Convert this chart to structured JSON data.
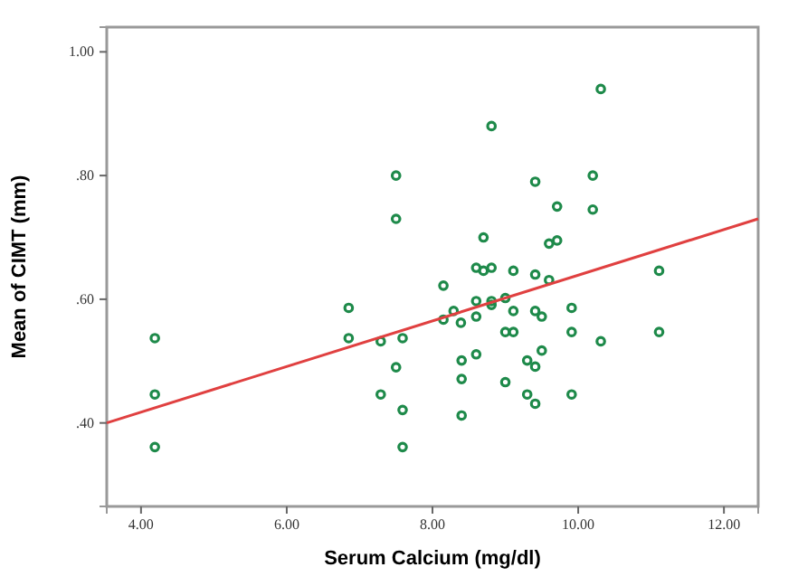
{
  "chart_data": {
    "type": "scatter",
    "xlabel": "Serum Calcium (mg/dl)",
    "ylabel": "Mean of CIMT (mm)",
    "xlim": [
      3.53,
      12.47
    ],
    "ylim": [
      0.265,
      1.04
    ],
    "xticks": [
      {
        "value": 4,
        "label": "4.00"
      },
      {
        "value": 6,
        "label": "6.00"
      },
      {
        "value": 8,
        "label": "8.00"
      },
      {
        "value": 10,
        "label": "10.00"
      },
      {
        "value": 12,
        "label": "12.00"
      }
    ],
    "yticks": [
      {
        "value": 0.4,
        "label": ".40"
      },
      {
        "value": 0.6,
        "label": ".60"
      },
      {
        "value": 0.8,
        "label": ".80"
      },
      {
        "value": 1.0,
        "label": "1.00"
      }
    ],
    "grid": false,
    "marker": "circle",
    "series": [
      {
        "color": "#1e8a4a",
        "x": [
          7.5,
          7.5,
          10.31,
          8.81,
          9.41,
          10.2,
          9.71,
          10.2,
          8.7,
          9.6,
          9.71,
          8.6,
          8.7,
          8.81,
          9.11,
          9.41,
          9.6,
          11.11,
          8.15,
          4.19,
          4.19,
          4.19,
          6.85,
          6.85,
          7.29,
          7.59,
          7.5,
          7.29,
          7.59,
          7.59,
          8.6,
          8.81,
          8.81,
          9.0,
          8.29,
          8.15,
          8.39,
          8.6,
          9.11,
          9.41,
          9.5,
          9.91,
          9.0,
          9.11,
          9.91,
          11.11,
          10.31,
          8.4,
          8.6,
          9.5,
          9.3,
          9.41,
          8.4,
          9.0,
          9.3,
          9.41,
          9.91,
          8.4
        ],
        "values": [
          0.8,
          0.73,
          0.94,
          0.88,
          0.79,
          0.8,
          0.75,
          0.745,
          0.7,
          0.69,
          0.695,
          0.651,
          0.646,
          0.651,
          0.646,
          0.64,
          0.631,
          0.646,
          0.622,
          0.537,
          0.446,
          0.361,
          0.586,
          0.537,
          0.532,
          0.537,
          0.49,
          0.446,
          0.421,
          0.361,
          0.597,
          0.597,
          0.591,
          0.602,
          0.581,
          0.567,
          0.562,
          0.572,
          0.581,
          0.581,
          0.572,
          0.586,
          0.547,
          0.547,
          0.547,
          0.547,
          0.532,
          0.501,
          0.511,
          0.517,
          0.501,
          0.491,
          0.471,
          0.466,
          0.446,
          0.431,
          0.446,
          0.412
        ]
      },
      {
        "type": "line",
        "color": "#e04040",
        "marker": "none",
        "line_style": "solid",
        "x": [
          3.53,
          12.47
        ],
        "values": [
          0.4,
          0.73
        ]
      }
    ]
  }
}
